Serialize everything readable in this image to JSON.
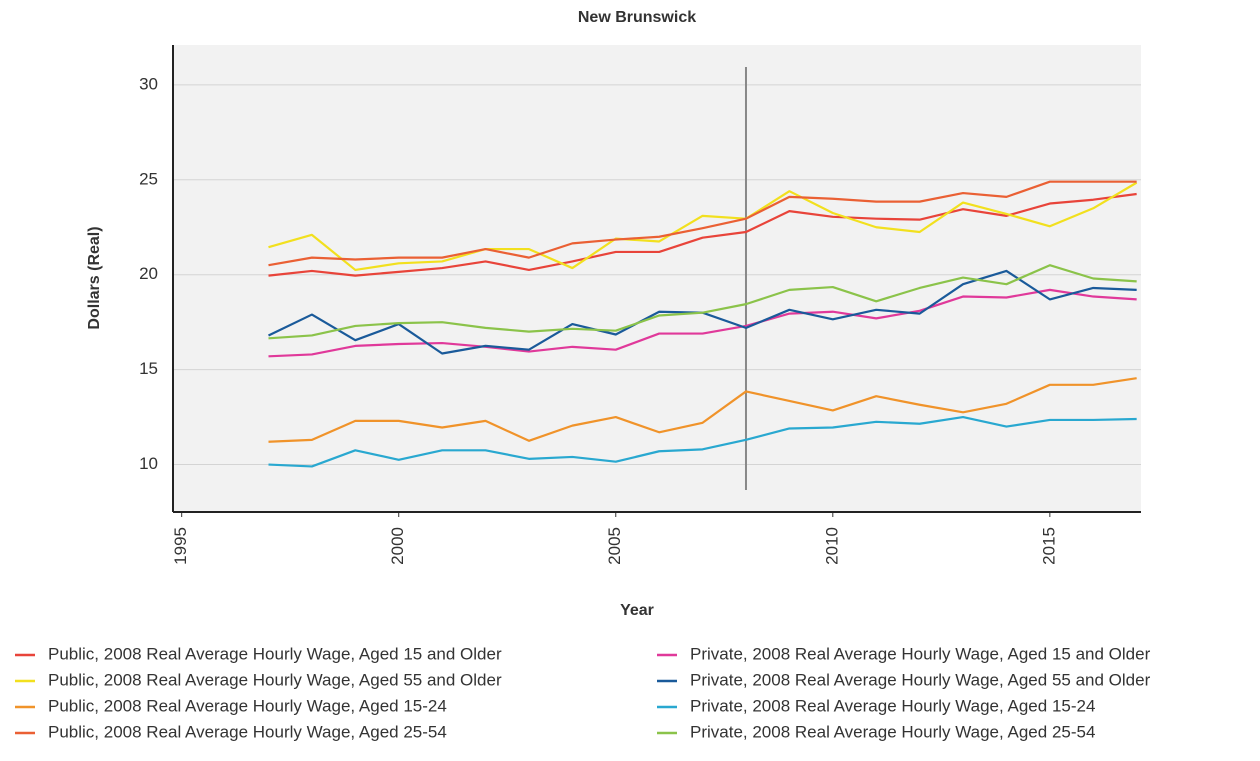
{
  "chart_data": {
    "type": "line",
    "title": "New Brunswick",
    "x_label": "Year",
    "y_label": "Dollars (Real)",
    "x": [
      1997,
      1998,
      1999,
      2000,
      2001,
      2002,
      2003,
      2004,
      2005,
      2006,
      2007,
      2008,
      2009,
      2010,
      2011,
      2012,
      2013,
      2014,
      2015,
      2016,
      2017
    ],
    "xlim": [
      1994.8,
      2017.1
    ],
    "xticks": [
      1995,
      2000,
      2005,
      2010,
      2015
    ],
    "ylim": [
      7.5,
      32.1
    ],
    "yticks": [
      10,
      15,
      20,
      25,
      30
    ],
    "grid": true,
    "reference_x": 2008,
    "series": [
      {
        "name": "Public, 2008 Real Average Hourly Wage, Aged 15 and Older",
        "color": "#e8443a",
        "values": [
          19.95,
          20.2,
          19.95,
          20.15,
          20.35,
          20.7,
          20.25,
          20.7,
          21.2,
          21.2,
          21.95,
          22.25,
          23.35,
          23.05,
          22.95,
          22.9,
          23.45,
          23.1,
          23.75,
          23.95,
          24.25
        ]
      },
      {
        "name": "Public, 2008 Real Average Hourly Wage, Aged 55 and Older",
        "color": "#f2e01e",
        "values": [
          21.45,
          22.1,
          20.25,
          20.6,
          20.7,
          21.35,
          21.35,
          20.35,
          21.9,
          21.75,
          23.1,
          22.95,
          24.4,
          23.25,
          22.5,
          22.25,
          23.8,
          23.2,
          22.55,
          23.5,
          24.85
        ]
      },
      {
        "name": "Public, 2008 Real Average Hourly Wage, Aged 15-24",
        "color": "#f0932a",
        "values": [
          11.2,
          11.3,
          12.3,
          12.3,
          11.95,
          12.3,
          11.25,
          12.05,
          12.5,
          11.7,
          12.2,
          13.85,
          13.35,
          12.85,
          13.6,
          13.15,
          12.75,
          13.2,
          14.2,
          14.2,
          14.55
        ]
      },
      {
        "name": "Public, 2008 Real Average Hourly Wage, Aged 25-54",
        "color": "#ea6034",
        "values": [
          20.5,
          20.9,
          20.8,
          20.9,
          20.9,
          21.35,
          20.9,
          21.65,
          21.85,
          22.0,
          22.45,
          22.95,
          24.1,
          24.0,
          23.85,
          23.85,
          24.3,
          24.1,
          24.9,
          24.9,
          24.9
        ]
      },
      {
        "name": "Private, 2008 Real Average Hourly Wage, Aged 15 and Older",
        "color": "#e0399a",
        "values": [
          15.7,
          15.8,
          16.25,
          16.35,
          16.4,
          16.2,
          15.95,
          16.2,
          16.05,
          16.9,
          16.9,
          17.3,
          17.95,
          18.05,
          17.7,
          18.1,
          18.85,
          18.8,
          19.2,
          18.85,
          18.7
        ]
      },
      {
        "name": "Private, 2008 Real Average Hourly Wage, Aged 55 and Older",
        "color": "#1a5a9a",
        "values": [
          16.8,
          17.9,
          16.55,
          17.4,
          15.85,
          16.25,
          16.05,
          17.4,
          16.85,
          18.05,
          18.0,
          17.2,
          18.15,
          17.65,
          18.15,
          17.95,
          19.5,
          20.2,
          18.7,
          19.3,
          19.2
        ]
      },
      {
        "name": "Private, 2008 Real Average Hourly Wage, Aged 15-24",
        "color": "#29a8d0",
        "values": [
          10.0,
          9.9,
          10.75,
          10.25,
          10.75,
          10.75,
          10.3,
          10.4,
          10.15,
          10.7,
          10.8,
          11.3,
          11.9,
          11.95,
          12.25,
          12.15,
          12.5,
          12.0,
          12.35,
          12.35,
          12.4
        ]
      },
      {
        "name": "Private, 2008 Real Average Hourly Wage, Aged 25-54",
        "color": "#8bc34a",
        "values": [
          16.65,
          16.8,
          17.3,
          17.45,
          17.5,
          17.2,
          17.0,
          17.15,
          17.05,
          17.85,
          18.0,
          18.45,
          19.2,
          19.35,
          18.6,
          19.3,
          19.85,
          19.5,
          20.5,
          19.8,
          19.65
        ]
      }
    ]
  }
}
